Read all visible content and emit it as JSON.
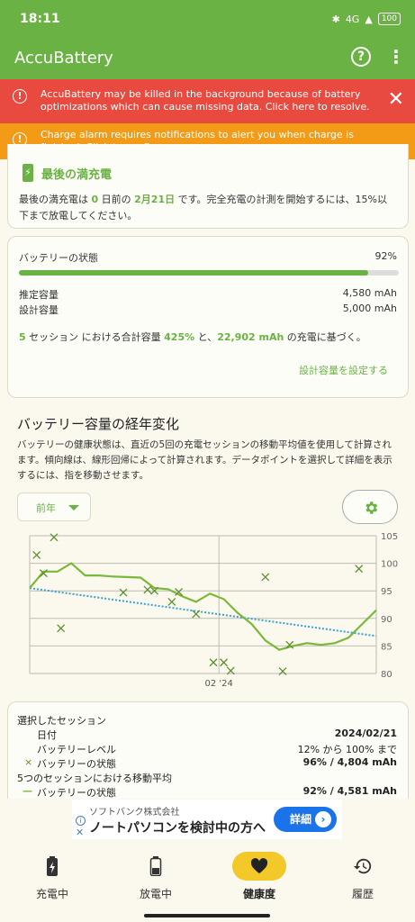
{
  "status_bar": {
    "time": "18:11",
    "network": "4G",
    "battery": "100"
  },
  "app_bar": {
    "title": "AccuBattery"
  },
  "banners": {
    "red": {
      "text": "AccuBattery may be killed in the background because of battery optimizations which can cause missing data. Click here to resolve.",
      "color": "#e84a3f"
    },
    "orange": {
      "text": "Charge alarm requires notifications to alert you when charge is finished. Click to configure.",
      "color": "#f39a17"
    }
  },
  "last_charge": {
    "title": "最後の満充電",
    "text_1": "最後の満充電は ",
    "days": "0",
    "text_2": " 日前の ",
    "date": "2月21日",
    "text_3": " です。完全充電の計測を開始するには、15%以下まで放電してください。"
  },
  "battery_health": {
    "label": "バッテリーの状態",
    "percent": "92%",
    "fill_percent": 92,
    "estimated_label": "推定容量",
    "estimated_value": "4,580 mAh",
    "design_label": "設計容量",
    "design_value": "5,000 mAh",
    "sessions": "5",
    "based_1": " セッション における合計容量 ",
    "total_pct": "425%",
    "based_2": " と、",
    "total_mah": "22,902 mAh",
    "based_3": " の充電に基づく。",
    "set_link": "設計容量を設定する"
  },
  "history": {
    "title": "バッテリー容量の経年変化",
    "description": "バッテリーの健康状態は、直近の5回の充電セッションの移動平均値を使用して計算されます。傾向線は、線形回帰によって計算されます。データポイントを選択して詳細を表示するには、指を移動させます。",
    "period": "前年"
  },
  "chart_data": {
    "type": "line",
    "x_tick_labels": [
      "02 '24"
    ],
    "y_ticks": [
      80,
      85,
      90,
      95,
      100,
      105
    ],
    "ylim": [
      80,
      105
    ],
    "grid": true,
    "series": [
      {
        "values": [
          95.5,
          98.5,
          98.5,
          100,
          97.8,
          97.8,
          97.6,
          97.5,
          97.4,
          95.5,
          95.3,
          94,
          93,
          94.5,
          93.5,
          91,
          89,
          86,
          84.3,
          85,
          85.5,
          85.2,
          85.5,
          86.5,
          89,
          91.5
        ]
      },
      {
        "values": [
          101.5,
          104.7,
          98.2,
          88.2,
          94.7,
          95.2,
          95.0,
          93.0,
          94.8,
          90.8,
          82.0,
          82.0,
          80.5,
          97.5,
          80.4,
          85.2,
          99.0
        ]
      },
      {
        "values": [
          95.5,
          86.8
        ]
      }
    ],
    "colors": {
      "health": "#7ab83a",
      "trend": "#3a9fd8",
      "points": "#5c8f2c"
    }
  },
  "selected_session": {
    "header": "選択したセッション",
    "date_label": "日付",
    "date_value": "2024/02/21",
    "level_label": "バッテリーレベル",
    "level_value": "12% から 100% まで",
    "health_label": "バッテリーの状態",
    "health_value": "96% / 4,804 mAh",
    "avg_header": "5つのセッションにおける移動平均",
    "avg_label": "バッテリーの状態",
    "avg_value": "92% / 4,581 mAh"
  },
  "ad": {
    "sponsor": "ソフトバンク株式会社",
    "title": "ノートパソコンを検討中の方へ",
    "button": "詳細"
  },
  "nav": {
    "charging": "充電中",
    "discharging": "放電中",
    "health": "健康度",
    "history": "履歴"
  }
}
